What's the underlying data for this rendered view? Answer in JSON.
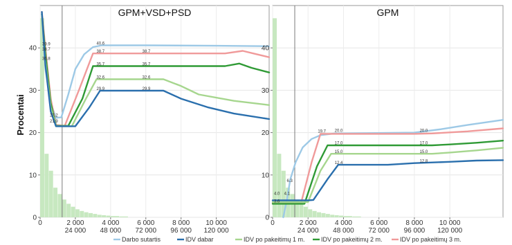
{
  "chart_data": {
    "type": "line",
    "ylabel": "Procentai",
    "ylim": [
      0,
      50
    ],
    "yticks": [
      0,
      10,
      20,
      30,
      40
    ],
    "grid": true,
    "legend_position": "bottom",
    "series_names": [
      "Darbo sutartis",
      "IDV dabar",
      "IDV po pakeitimų 1 m.",
      "IDV po pakeitimų 2 m.",
      "IDV po pakeitimų 3 m."
    ],
    "series_colors": [
      "#9dc9e6",
      "#2a6fad",
      "#a6d68e",
      "#2f9a35",
      "#f09a9a"
    ],
    "histogram_color": "#c7e8c0",
    "panels": [
      {
        "title": "GPM+VSD+PSD",
        "xlim": [
          0,
          13000
        ],
        "xticks_top": [
          {
            "x": 0,
            "label": "0"
          },
          {
            "x": 2000,
            "label": "2 000"
          },
          {
            "x": 4000,
            "label": "4 000"
          },
          {
            "x": 6000,
            "label": "6 000"
          },
          {
            "x": 8000,
            "label": "8 000"
          },
          {
            "x": 10000,
            "label": "10 000"
          }
        ],
        "xticks_bottom": [
          {
            "x": 2000,
            "label": "24 000"
          },
          {
            "x": 4000,
            "label": "48 000"
          },
          {
            "x": 6000,
            "label": "72 000"
          },
          {
            "x": 8000,
            "label": "96 000"
          },
          {
            "x": 10000,
            "label": "120 000"
          }
        ],
        "vline_x": 1250,
        "histogram": [
          {
            "x0": 0,
            "x1": 250,
            "y": 47
          },
          {
            "x0": 250,
            "x1": 500,
            "y": 15
          },
          {
            "x0": 500,
            "x1": 750,
            "y": 11
          },
          {
            "x0": 750,
            "x1": 1000,
            "y": 7
          },
          {
            "x0": 1000,
            "x1": 1250,
            "y": 5.5
          },
          {
            "x0": 1250,
            "x1": 1500,
            "y": 4.2
          },
          {
            "x0": 1500,
            "x1": 1750,
            "y": 3.2
          },
          {
            "x0": 1750,
            "x1": 2000,
            "y": 2.5
          },
          {
            "x0": 2000,
            "x1": 2250,
            "y": 1.9
          },
          {
            "x0": 2250,
            "x1": 2500,
            "y": 1.5
          },
          {
            "x0": 2500,
            "x1": 2750,
            "y": 1.2
          },
          {
            "x0": 2750,
            "x1": 3000,
            "y": 1.0
          },
          {
            "x0": 3000,
            "x1": 3250,
            "y": 0.8
          },
          {
            "x0": 3250,
            "x1": 3500,
            "y": 0.6
          },
          {
            "x0": 3500,
            "x1": 3750,
            "y": 0.5
          },
          {
            "x0": 3750,
            "x1": 4000,
            "y": 0.4
          },
          {
            "x0": 4000,
            "x1": 4500,
            "y": 0.3
          },
          {
            "x0": 4500,
            "x1": 5000,
            "y": 0.2
          }
        ],
        "series": [
          {
            "name": "Darbo sutartis",
            "points": [
              [
                100,
                48
              ],
              [
                300,
                35
              ],
              [
                600,
                27
              ],
              [
                900,
                23.5
              ],
              [
                1200,
                23.6
              ],
              [
                1600,
                29
              ],
              [
                2000,
                35
              ],
              [
                2500,
                38.5
              ],
              [
                3000,
                40.2
              ],
              [
                3500,
                40.6
              ],
              [
                6000,
                40.6
              ],
              [
                10000,
                40.5
              ],
              [
                13000,
                40.4
              ]
            ]
          },
          {
            "name": "IDV po pakeitimų 3 m.",
            "points": [
              [
                100,
                48.5
              ],
              [
                300,
                39.9
              ],
              [
                600,
                28
              ],
              [
                900,
                21.8
              ],
              [
                1400,
                21.6
              ],
              [
                2200,
                30
              ],
              [
                3000,
                38.7
              ],
              [
                7000,
                38.7
              ],
              [
                10500,
                38.7
              ],
              [
                11500,
                39.3
              ],
              [
                12200,
                38.6
              ],
              [
                13000,
                37.8
              ]
            ]
          },
          {
            "name": "IDV po pakeitimų 2 m.",
            "points": [
              [
                100,
                48
              ],
              [
                300,
                38.7
              ],
              [
                600,
                27
              ],
              [
                900,
                21.6
              ],
              [
                1600,
                21.6
              ],
              [
                2400,
                28
              ],
              [
                3000,
                35.7
              ],
              [
                7000,
                35.7
              ],
              [
                10500,
                35.7
              ],
              [
                11300,
                36.3
              ],
              [
                12000,
                35.3
              ],
              [
                13000,
                34.2
              ]
            ]
          },
          {
            "name": "IDV po pakeitimų 1 m.",
            "points": [
              [
                100,
                47.5
              ],
              [
                300,
                36.8
              ],
              [
                600,
                26
              ],
              [
                900,
                21.5
              ],
              [
                1800,
                21.5
              ],
              [
                2600,
                28
              ],
              [
                3200,
                32.6
              ],
              [
                7000,
                32.6
              ],
              [
                8000,
                31
              ],
              [
                9000,
                29
              ],
              [
                11000,
                27.5
              ],
              [
                13000,
                26.5
              ]
            ]
          },
          {
            "name": "IDV dabar",
            "points": [
              [
                100,
                48.5
              ],
              [
                300,
                36
              ],
              [
                600,
                25
              ],
              [
                900,
                21.5
              ],
              [
                2000,
                21.5
              ],
              [
                2800,
                26
              ],
              [
                3400,
                29.9
              ],
              [
                7000,
                29.9
              ],
              [
                8000,
                28
              ],
              [
                9500,
                26
              ],
              [
                11000,
                24.5
              ],
              [
                13000,
                23.2
              ]
            ]
          }
        ],
        "annotations": [
          {
            "x": 120,
            "y": 40.6,
            "text": "39.9"
          },
          {
            "x": 120,
            "y": 39.4,
            "text": "38.7"
          },
          {
            "x": 120,
            "y": 37.2,
            "text": "36.8"
          },
          {
            "x": 550,
            "y": 23.8,
            "text": "27.2"
          },
          {
            "x": 550,
            "y": 22.4,
            "text": "21.9"
          },
          {
            "x": 3200,
            "y": 40.8,
            "text": "40.6"
          },
          {
            "x": 3200,
            "y": 38.9,
            "text": "38.7"
          },
          {
            "x": 5800,
            "y": 38.9,
            "text": "38.7"
          },
          {
            "x": 3200,
            "y": 35.9,
            "text": "35.7"
          },
          {
            "x": 5800,
            "y": 35.9,
            "text": "35.7"
          },
          {
            "x": 3200,
            "y": 32.8,
            "text": "32.6"
          },
          {
            "x": 5800,
            "y": 32.8,
            "text": "32.6"
          },
          {
            "x": 3200,
            "y": 30.1,
            "text": "29.9"
          },
          {
            "x": 5800,
            "y": 30.1,
            "text": "29.9"
          }
        ]
      },
      {
        "title": "GPM",
        "xlim": [
          0,
          13000
        ],
        "xticks_top": [
          {
            "x": 0,
            "label": "0"
          },
          {
            "x": 2000,
            "label": "2 000"
          },
          {
            "x": 4000,
            "label": "4 000"
          },
          {
            "x": 6000,
            "label": "6 000"
          },
          {
            "x": 8000,
            "label": "8 000"
          },
          {
            "x": 10000,
            "label": "10 000"
          }
        ],
        "xticks_bottom": [
          {
            "x": 2000,
            "label": "24 000"
          },
          {
            "x": 4000,
            "label": "48 000"
          },
          {
            "x": 6000,
            "label": "72 000"
          },
          {
            "x": 8000,
            "label": "96 000"
          },
          {
            "x": 10000,
            "label": "120 000"
          }
        ],
        "vline_x": 1250,
        "histogram": [
          {
            "x0": 0,
            "x1": 250,
            "y": 47
          },
          {
            "x0": 250,
            "x1": 500,
            "y": 15
          },
          {
            "x0": 500,
            "x1": 750,
            "y": 11
          },
          {
            "x0": 750,
            "x1": 1000,
            "y": 7
          },
          {
            "x0": 1000,
            "x1": 1250,
            "y": 5.5
          },
          {
            "x0": 1250,
            "x1": 1500,
            "y": 4.2
          },
          {
            "x0": 1500,
            "x1": 1750,
            "y": 3.2
          },
          {
            "x0": 1750,
            "x1": 2000,
            "y": 2.5
          },
          {
            "x0": 2000,
            "x1": 2250,
            "y": 1.9
          },
          {
            "x0": 2250,
            "x1": 2500,
            "y": 1.5
          },
          {
            "x0": 2500,
            "x1": 2750,
            "y": 1.2
          },
          {
            "x0": 2750,
            "x1": 3000,
            "y": 1.0
          },
          {
            "x0": 3000,
            "x1": 3250,
            "y": 0.8
          },
          {
            "x0": 3250,
            "x1": 3500,
            "y": 0.6
          },
          {
            "x0": 3500,
            "x1": 3750,
            "y": 0.5
          },
          {
            "x0": 3750,
            "x1": 4000,
            "y": 0.4
          },
          {
            "x0": 4000,
            "x1": 4500,
            "y": 0.3
          },
          {
            "x0": 4500,
            "x1": 5000,
            "y": 0.2
          }
        ],
        "series": [
          {
            "name": "Darbo sutartis",
            "points": [
              [
                600,
                0
              ],
              [
                800,
                4
              ],
              [
                1000,
                9
              ],
              [
                1300,
                13
              ],
              [
                1700,
                16.5
              ],
              [
                2200,
                18.5
              ],
              [
                2700,
                19.4
              ],
              [
                3500,
                19.8
              ],
              [
                8000,
                20.0
              ],
              [
                9500,
                20.8
              ],
              [
                11000,
                21.8
              ],
              [
                13000,
                23.0
              ]
            ]
          },
          {
            "name": "IDV po pakeitimų 3 m.",
            "points": [
              [
                0,
                3.3
              ],
              [
                1600,
                3.3
              ],
              [
                2200,
                13
              ],
              [
                2700,
                19.7
              ],
              [
                8000,
                19.7
              ],
              [
                9000,
                19.8
              ],
              [
                11000,
                20.3
              ],
              [
                13000,
                21.0
              ]
            ]
          },
          {
            "name": "IDV po pakeitimų 2 m.",
            "points": [
              [
                0,
                3.2
              ],
              [
                1800,
                3.2
              ],
              [
                2500,
                12
              ],
              [
                3100,
                17.0
              ],
              [
                9000,
                17.0
              ],
              [
                10000,
                17.2
              ],
              [
                11500,
                17.6
              ],
              [
                13000,
                18.1
              ]
            ]
          },
          {
            "name": "IDV po pakeitimų 1 m.",
            "points": [
              [
                0,
                3.6
              ],
              [
                2000,
                3.6
              ],
              [
                2700,
                11
              ],
              [
                3300,
                15.0
              ],
              [
                9000,
                15.0
              ],
              [
                10000,
                15.3
              ],
              [
                11500,
                15.8
              ],
              [
                13000,
                16.4
              ]
            ]
          },
          {
            "name": "IDV dabar",
            "points": [
              [
                0,
                4.0
              ],
              [
                1300,
                4.0
              ],
              [
                2000,
                4.0
              ],
              [
                2300,
                4.1
              ],
              [
                3100,
                9
              ],
              [
                3700,
                12.4
              ],
              [
                6500,
                12.4
              ],
              [
                8000,
                12.8
              ],
              [
                10000,
                13.1
              ],
              [
                11500,
                13.4
              ],
              [
                13000,
                13.5
              ]
            ]
          }
        ],
        "annotations": [
          {
            "x": 80,
            "y": 5.3,
            "text": "4.0"
          },
          {
            "x": 80,
            "y": 3.5,
            "text": "3.6"
          },
          {
            "x": 650,
            "y": 5.3,
            "text": "4.1"
          },
          {
            "x": 800,
            "y": 8.3,
            "text": "6.3"
          },
          {
            "x": 2550,
            "y": 20.0,
            "text": "19.7"
          },
          {
            "x": 3500,
            "y": 20.2,
            "text": "20.0"
          },
          {
            "x": 8300,
            "y": 20.2,
            "text": "20.0"
          },
          {
            "x": 3500,
            "y": 17.2,
            "text": "17.0"
          },
          {
            "x": 8300,
            "y": 17.2,
            "text": "17.0"
          },
          {
            "x": 3500,
            "y": 15.2,
            "text": "15.0"
          },
          {
            "x": 8300,
            "y": 15.2,
            "text": "15.0"
          },
          {
            "x": 3500,
            "y": 12.6,
            "text": "12.4"
          },
          {
            "x": 8300,
            "y": 13.0,
            "text": "12.8"
          }
        ]
      }
    ]
  }
}
